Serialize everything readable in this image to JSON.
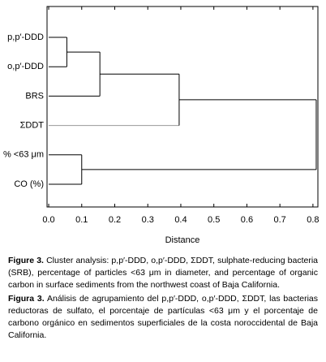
{
  "chart_data": {
    "type": "dendrogram",
    "xlabel": "Distance",
    "xlim": [
      -0.005,
      0.815
    ],
    "xticks": [
      {
        "value": 0,
        "label": "0.0"
      },
      0.1,
      0.2,
      0.3,
      0.4,
      0.5,
      0.6,
      0.7,
      0.8
    ],
    "color": "#000000",
    "tree": {
      "height": 0.81,
      "children": [
        {
          "height": 0.395,
          "children": [
            {
              "height": 0.155,
              "children": [
                {
                  "height": 0.055,
                  "children": [
                    {
                      "label": "p,p′-DDD"
                    },
                    {
                      "label": "o,p′-DDD"
                    }
                  ]
                },
                {
                  "label": "BRS"
                }
              ]
            },
            {
              "label": "ΣDDT",
              "color": "#999999"
            }
          ]
        },
        {
          "height": 0.1,
          "children": [
            {
              "label": "% <63 μm"
            },
            {
              "label": "CO (%)"
            }
          ]
        }
      ]
    }
  },
  "captions": [
    {
      "label": "Figure 3.",
      "text": "Cluster analysis: p,p′-DDD, o,p′-DDD, ΣDDT, sulphate-reducing bacteria (SRB), percentage of particles <63 μm in diameter, and percentage of organic carbon in surface sediments from the northwest coast of Baja California."
    },
    {
      "label": "Figura 3.",
      "text": "Análisis de agrupamiento del p,p′-DDD, o,p′-DDD, ΣDDT, las bacterias reductoras de sulfato, el porcentaje de partículas <63 μm y el porcentaje de carbono orgánico en sedimentos superficiales de la costa noroccidental de Baja California."
    }
  ]
}
